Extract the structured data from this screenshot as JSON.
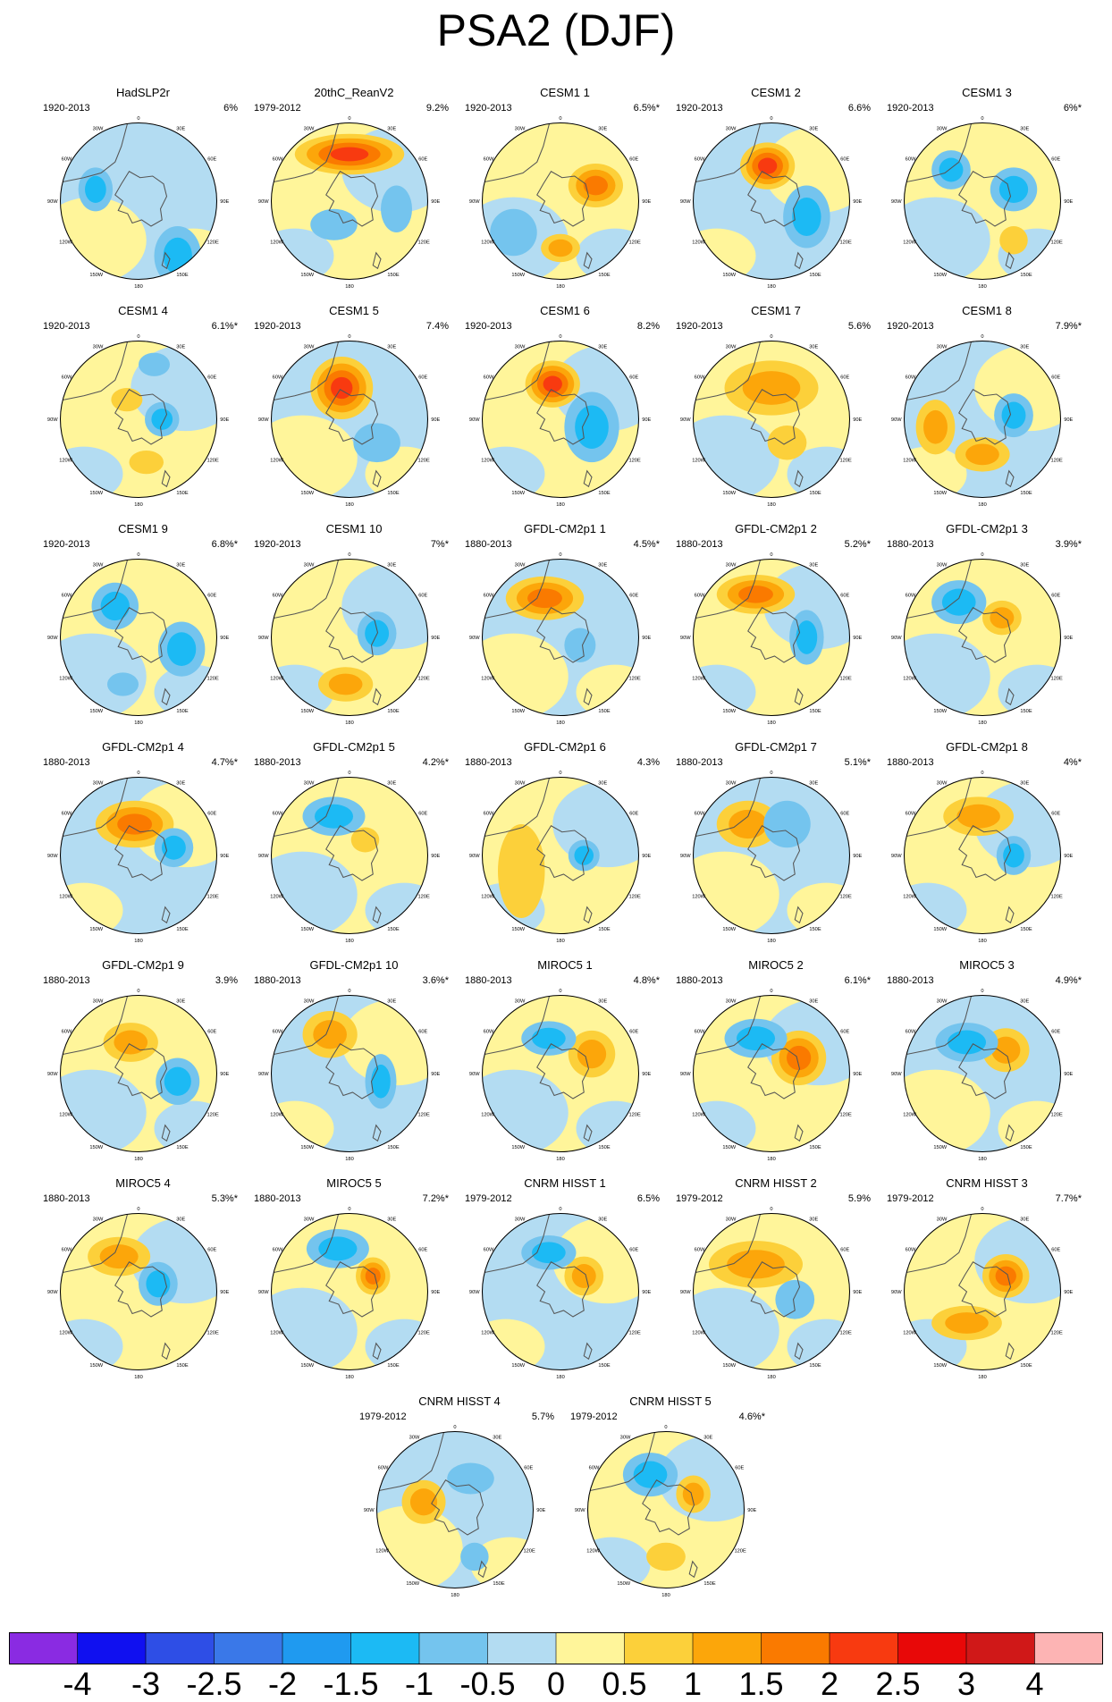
{
  "title": "PSA2 (DJF)",
  "legend": {
    "colors": [
      "#8a2be2",
      "#1010f0",
      "#2e4ee6",
      "#3a78e8",
      "#1f9af0",
      "#1cbaf4",
      "#74c4ee",
      "#b3dcf2",
      "#fff59a",
      "#fcd03a",
      "#fca60a",
      "#fa7a00",
      "#f83a10",
      "#e80808",
      "#d01818",
      "#fdb4b4"
    ],
    "ticks": [
      "-4",
      "-3",
      "-2.5",
      "-2",
      "-1.5",
      "-1",
      "-0.5",
      "0",
      "0.5",
      "1",
      "1.5",
      "2",
      "2.5",
      "3",
      "4"
    ]
  },
  "map_labels": {
    "top": "0",
    "top_left": "30W",
    "top_right": "30E",
    "upper_left": "60W",
    "upper_right": "60E",
    "left": "90W",
    "right": "90E",
    "lower_left": "120W",
    "lower_right": "120E",
    "bottom_left": "150W",
    "bottom_right": "150E",
    "bottom": "180"
  },
  "panels": [
    {
      "name": "HadSLP2r",
      "period": "1920-2013",
      "pct": "6%"
    },
    {
      "name": "20thC_ReanV2",
      "period": "1979-2012",
      "pct": "9.2%"
    },
    {
      "name": "CESM1 1",
      "period": "1920-2013",
      "pct": "6.5%*"
    },
    {
      "name": "CESM1 2",
      "period": "1920-2013",
      "pct": "6.6%"
    },
    {
      "name": "CESM1 3",
      "period": "1920-2013",
      "pct": "6%*"
    },
    {
      "name": "CESM1 4",
      "period": "1920-2013",
      "pct": "6.1%*"
    },
    {
      "name": "CESM1 5",
      "period": "1920-2013",
      "pct": "7.4%"
    },
    {
      "name": "CESM1 6",
      "period": "1920-2013",
      "pct": "8.2%"
    },
    {
      "name": "CESM1 7",
      "period": "1920-2013",
      "pct": "5.6%"
    },
    {
      "name": "CESM1 8",
      "period": "1920-2013",
      "pct": "7.9%*"
    },
    {
      "name": "CESM1 9",
      "period": "1920-2013",
      "pct": "6.8%*"
    },
    {
      "name": "CESM1 10",
      "period": "1920-2013",
      "pct": "7%*"
    },
    {
      "name": "GFDL-CM2p1 1",
      "period": "1880-2013",
      "pct": "4.5%*"
    },
    {
      "name": "GFDL-CM2p1 2",
      "period": "1880-2013",
      "pct": "5.2%*"
    },
    {
      "name": "GFDL-CM2p1 3",
      "period": "1880-2013",
      "pct": "3.9%*"
    },
    {
      "name": "GFDL-CM2p1 4",
      "period": "1880-2013",
      "pct": "4.7%*"
    },
    {
      "name": "GFDL-CM2p1 5",
      "period": "1880-2013",
      "pct": "4.2%*"
    },
    {
      "name": "GFDL-CM2p1 6",
      "period": "1880-2013",
      "pct": "4.3%"
    },
    {
      "name": "GFDL-CM2p1 7",
      "period": "1880-2013",
      "pct": "5.1%*"
    },
    {
      "name": "GFDL-CM2p1 8",
      "period": "1880-2013",
      "pct": "4%*"
    },
    {
      "name": "GFDL-CM2p1 9",
      "period": "1880-2013",
      "pct": "3.9%"
    },
    {
      "name": "GFDL-CM2p1 10",
      "period": "1880-2013",
      "pct": "3.6%*"
    },
    {
      "name": "MIROC5 1",
      "period": "1880-2013",
      "pct": "4.8%*"
    },
    {
      "name": "MIROC5 2",
      "period": "1880-2013",
      "pct": "6.1%*"
    },
    {
      "name": "MIROC5 3",
      "period": "1880-2013",
      "pct": "4.9%*"
    },
    {
      "name": "MIROC5 4",
      "period": "1880-2013",
      "pct": "5.3%*"
    },
    {
      "name": "MIROC5 5",
      "period": "1880-2013",
      "pct": "7.2%*"
    },
    {
      "name": "CNRM HISST 1",
      "period": "1979-2012",
      "pct": "6.5%"
    },
    {
      "name": "CNRM HISST 2",
      "period": "1979-2012",
      "pct": "5.9%"
    },
    {
      "name": "CNRM HISST 3",
      "period": "1979-2012",
      "pct": "7.7%*"
    },
    {
      "name": "CNRM HISST 4",
      "period": "1979-2012",
      "pct": "5.7%"
    },
    {
      "name": "CNRM HISST 5",
      "period": "1979-2012",
      "pct": "4.6%*"
    }
  ]
}
